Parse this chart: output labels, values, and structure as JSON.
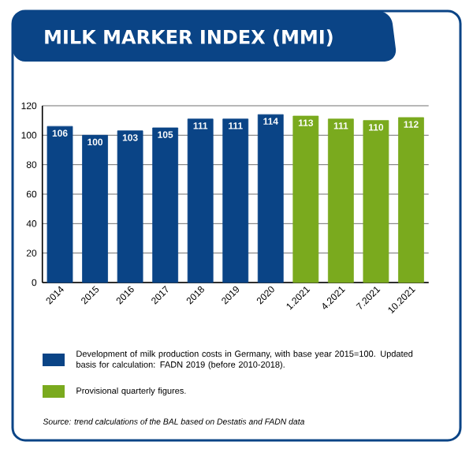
{
  "chart_data": {
    "type": "bar",
    "title": "MILK MARKER INDEX (MMI)",
    "categories": [
      "2014",
      "2015",
      "2016",
      "2017",
      "2018",
      "2019",
      "2020",
      "1.2021",
      "4.2021",
      "7.2021",
      "10.2021"
    ],
    "series": [
      {
        "name": "Development of milk production costs in Germany, with base year 2015=100. Updated basis for calculation: FADN 2019 (before 2010-2018).",
        "color": "#0a4486",
        "values": [
          106,
          100,
          103,
          105,
          111,
          111,
          114,
          null,
          null,
          null,
          null
        ]
      },
      {
        "name": "Provisional quarterly figures.",
        "color": "#7aaa1e",
        "values": [
          null,
          null,
          null,
          null,
          null,
          null,
          null,
          113,
          111,
          110,
          112
        ]
      }
    ],
    "ylim": [
      0,
      120
    ],
    "yticks": [
      0,
      20,
      40,
      60,
      80,
      100,
      120
    ],
    "grid": "y",
    "legend": "bottom",
    "data_labels": true,
    "annotations": [
      "Source: trend calculations of the BAL based on Destatis and FADN data"
    ]
  }
}
